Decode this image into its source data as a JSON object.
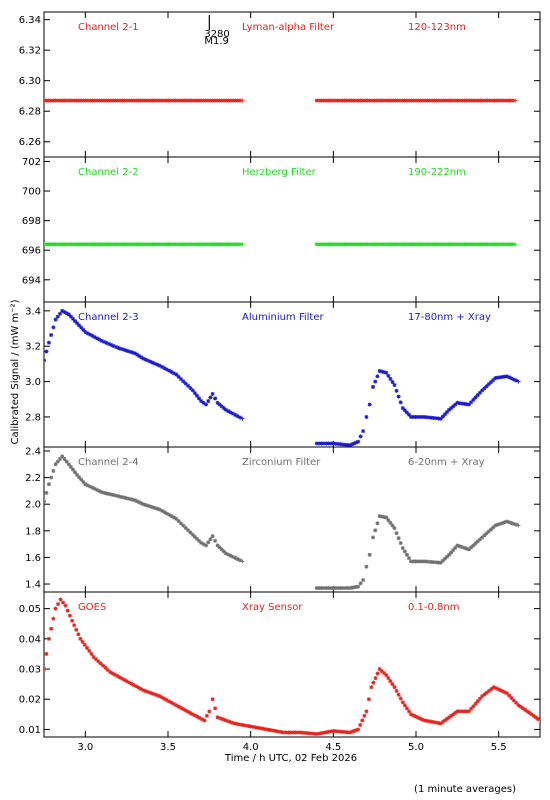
{
  "figure": {
    "xlabel": "Time / h UTC, 02 Feb 2026",
    "ylabel": "Calibrated Signal / (mW m⁻²)",
    "footnote": "(1 minute averages)"
  },
  "chart_data": [
    {
      "type": "scatter",
      "id": "ch21",
      "color": "#e8221c",
      "labels": [
        "Channel 2-1",
        "Lyman-alpha Filter",
        "120-123nm"
      ],
      "xlim": [
        2.75,
        5.75
      ],
      "ylim": [
        6.25,
        6.345
      ],
      "yticks": [
        6.26,
        6.28,
        6.3,
        6.32,
        6.34
      ],
      "ytick_labels": [
        "6.26",
        "6.28",
        "6.30",
        "6.32",
        "6.34"
      ],
      "xticks": [
        3.0,
        3.5,
        4.0,
        4.5,
        5.0,
        5.5
      ],
      "annotation": {
        "x": 3.75,
        "lines": [
          "3280",
          "M1.9"
        ]
      },
      "series": [
        {
          "points": [
            [
              2.75,
              6.287
            ],
            [
              3.95,
              6.287
            ]
          ]
        },
        {
          "points": [
            [
              4.4,
              6.287
            ],
            [
              5.6,
              6.287
            ]
          ]
        }
      ]
    },
    {
      "type": "scatter",
      "id": "ch22",
      "color": "#22dd22",
      "labels": [
        "Channel 2-2",
        "Herzberg Filter",
        "190-222nm"
      ],
      "xlim": [
        2.75,
        5.75
      ],
      "ylim": [
        692.5,
        702.3
      ],
      "yticks": [
        694,
        696,
        698,
        700,
        702
      ],
      "ytick_labels": [
        "694",
        "696",
        "698",
        "700",
        "702"
      ],
      "xticks": [
        3.0,
        3.5,
        4.0,
        4.5,
        5.0,
        5.5
      ],
      "series": [
        {
          "points": [
            [
              2.75,
              696.4
            ],
            [
              3.95,
              696.4
            ]
          ]
        },
        {
          "points": [
            [
              4.4,
              696.4
            ],
            [
              5.6,
              696.4
            ]
          ]
        }
      ]
    },
    {
      "type": "scatter",
      "id": "ch23",
      "color": "#1a1ad6",
      "labels": [
        "Channel 2-3",
        "Aluminium Filter",
        "17-80nm + Xray"
      ],
      "xlim": [
        2.75,
        5.75
      ],
      "ylim": [
        2.63,
        3.45
      ],
      "yticks": [
        2.8,
        3.0,
        3.2,
        3.4
      ],
      "ytick_labels": [
        "2.8",
        "3.0",
        "3.2",
        "3.4"
      ],
      "xticks": [
        3.0,
        3.5,
        4.0,
        4.5,
        5.0,
        5.5
      ],
      "series": [
        {
          "points": [
            [
              2.75,
              3.12
            ],
            [
              2.78,
              3.22
            ],
            [
              2.82,
              3.35
            ],
            [
              2.86,
              3.4
            ],
            [
              2.9,
              3.38
            ],
            [
              2.95,
              3.33
            ],
            [
              3.0,
              3.28
            ],
            [
              3.1,
              3.23
            ],
            [
              3.2,
              3.19
            ],
            [
              3.3,
              3.16
            ],
            [
              3.35,
              3.13
            ],
            [
              3.45,
              3.09
            ],
            [
              3.55,
              3.04
            ],
            [
              3.65,
              2.95
            ],
            [
              3.7,
              2.89
            ],
            [
              3.73,
              2.87
            ],
            [
              3.77,
              2.93
            ],
            [
              3.8,
              2.88
            ],
            [
              3.85,
              2.84
            ],
            [
              3.95,
              2.79
            ]
          ]
        },
        {
          "points": [
            [
              4.4,
              2.65
            ],
            [
              4.5,
              2.65
            ],
            [
              4.6,
              2.64
            ],
            [
              4.65,
              2.66
            ],
            [
              4.68,
              2.72
            ],
            [
              4.7,
              2.8
            ],
            [
              4.72,
              2.87
            ],
            [
              4.74,
              2.97
            ],
            [
              4.78,
              3.06
            ],
            [
              4.82,
              3.05
            ],
            [
              4.87,
              2.98
            ],
            [
              4.92,
              2.85
            ],
            [
              4.97,
              2.8
            ],
            [
              5.05,
              2.8
            ],
            [
              5.15,
              2.79
            ],
            [
              5.2,
              2.84
            ],
            [
              5.25,
              2.88
            ],
            [
              5.32,
              2.87
            ],
            [
              5.4,
              2.95
            ],
            [
              5.48,
              3.02
            ],
            [
              5.55,
              3.03
            ],
            [
              5.62,
              3.0
            ]
          ]
        }
      ]
    },
    {
      "type": "scatter",
      "id": "ch24",
      "color": "#707070",
      "labels": [
        "Channel 2-4",
        "Zirconium Filter",
        "6-20nm + Xray"
      ],
      "xlim": [
        2.75,
        5.75
      ],
      "ylim": [
        1.34,
        2.43
      ],
      "yticks": [
        1.4,
        1.6,
        1.8,
        2.0,
        2.2,
        2.4
      ],
      "ytick_labels": [
        "1.4",
        "1.6",
        "1.8",
        "2.0",
        "2.2",
        "2.4"
      ],
      "xticks": [
        3.0,
        3.5,
        4.0,
        4.5,
        5.0,
        5.5
      ],
      "series": [
        {
          "points": [
            [
              2.75,
              2.02
            ],
            [
              2.78,
              2.15
            ],
            [
              2.82,
              2.3
            ],
            [
              2.86,
              2.36
            ],
            [
              2.9,
              2.3
            ],
            [
              2.95,
              2.22
            ],
            [
              3.0,
              2.15
            ],
            [
              3.1,
              2.09
            ],
            [
              3.2,
              2.06
            ],
            [
              3.3,
              2.03
            ],
            [
              3.35,
              2.0
            ],
            [
              3.45,
              1.96
            ],
            [
              3.55,
              1.89
            ],
            [
              3.65,
              1.77
            ],
            [
              3.7,
              1.71
            ],
            [
              3.73,
              1.69
            ],
            [
              3.77,
              1.76
            ],
            [
              3.8,
              1.69
            ],
            [
              3.85,
              1.63
            ],
            [
              3.95,
              1.57
            ]
          ]
        },
        {
          "points": [
            [
              4.4,
              1.37
            ],
            [
              4.5,
              1.37
            ],
            [
              4.6,
              1.37
            ],
            [
              4.65,
              1.38
            ],
            [
              4.68,
              1.43
            ],
            [
              4.7,
              1.53
            ],
            [
              4.72,
              1.62
            ],
            [
              4.74,
              1.75
            ],
            [
              4.78,
              1.91
            ],
            [
              4.82,
              1.9
            ],
            [
              4.87,
              1.82
            ],
            [
              4.92,
              1.67
            ],
            [
              4.97,
              1.57
            ],
            [
              5.05,
              1.57
            ],
            [
              5.15,
              1.56
            ],
            [
              5.2,
              1.62
            ],
            [
              5.25,
              1.69
            ],
            [
              5.32,
              1.66
            ],
            [
              5.4,
              1.75
            ],
            [
              5.48,
              1.84
            ],
            [
              5.55,
              1.87
            ],
            [
              5.62,
              1.84
            ]
          ]
        }
      ]
    },
    {
      "type": "scatter",
      "id": "goes",
      "color": "#e8221c",
      "labels": [
        "GOES",
        "Xray Sensor",
        "0.1-0.8nm"
      ],
      "xlim": [
        2.75,
        5.75
      ],
      "ylim": [
        0.0075,
        0.0555
      ],
      "yticks": [
        0.01,
        0.02,
        0.03,
        0.04,
        0.05
      ],
      "ytick_labels": [
        "0.01",
        "0.02",
        "0.03",
        "0.04",
        "0.05"
      ],
      "xticks": [
        3.0,
        3.5,
        4.0,
        4.5,
        5.0,
        5.5
      ],
      "xtick_labels": [
        "3.0",
        "3.5",
        "4.0",
        "4.5",
        "5.0",
        "5.5"
      ],
      "series": [
        {
          "points": [
            [
              2.75,
              0.03
            ],
            [
              2.78,
              0.04
            ],
            [
              2.82,
              0.05
            ],
            [
              2.85,
              0.053
            ],
            [
              2.88,
              0.051
            ],
            [
              2.92,
              0.046
            ],
            [
              2.97,
              0.04
            ],
            [
              3.05,
              0.034
            ],
            [
              3.15,
              0.029
            ],
            [
              3.25,
              0.026
            ],
            [
              3.35,
              0.023
            ],
            [
              3.45,
              0.021
            ],
            [
              3.55,
              0.018
            ],
            [
              3.65,
              0.015
            ],
            [
              3.72,
              0.013
            ],
            [
              3.75,
              0.016
            ],
            [
              3.77,
              0.02
            ],
            [
              3.8,
              0.014
            ],
            [
              3.9,
              0.012
            ],
            [
              4.0,
              0.011
            ],
            [
              4.1,
              0.01
            ],
            [
              4.2,
              0.009
            ],
            [
              4.3,
              0.009
            ],
            [
              4.4,
              0.0085
            ],
            [
              4.5,
              0.0095
            ],
            [
              4.6,
              0.009
            ],
            [
              4.65,
              0.01
            ],
            [
              4.7,
              0.016
            ],
            [
              4.73,
              0.024
            ],
            [
              4.78,
              0.03
            ],
            [
              4.82,
              0.028
            ],
            [
              4.87,
              0.024
            ],
            [
              4.92,
              0.019
            ],
            [
              4.97,
              0.015
            ],
            [
              5.05,
              0.013
            ],
            [
              5.15,
              0.012
            ],
            [
              5.2,
              0.014
            ],
            [
              5.25,
              0.016
            ],
            [
              5.32,
              0.016
            ],
            [
              5.4,
              0.021
            ],
            [
              5.47,
              0.024
            ],
            [
              5.55,
              0.022
            ],
            [
              5.62,
              0.018
            ],
            [
              5.7,
              0.015
            ],
            [
              5.75,
              0.013
            ]
          ]
        }
      ]
    }
  ]
}
